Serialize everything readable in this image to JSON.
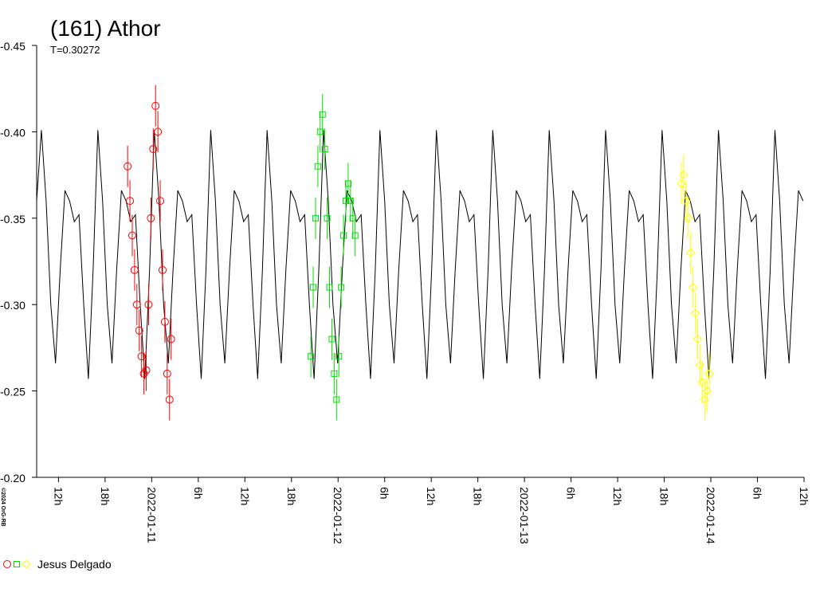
{
  "chart_data": {
    "type": "scatter",
    "title": "(161) Athor",
    "subtitle": "T=0.30272",
    "credit": "©2024 OrG-RB",
    "legend": {
      "label": "Jesus Delgado",
      "position": "bottom-left"
    },
    "y_inverted": true,
    "ylim": [
      -0.45,
      -0.2
    ],
    "yticks": [
      {
        "value": -0.45,
        "label": "-0.45"
      },
      {
        "value": -0.4,
        "label": "-0.40"
      },
      {
        "value": -0.35,
        "label": "-0.35"
      },
      {
        "value": -0.3,
        "label": "-0.30"
      },
      {
        "value": -0.25,
        "label": "-0.25"
      },
      {
        "value": -0.2,
        "label": "-0.20"
      }
    ],
    "xlim": [
      9.19,
      108
    ],
    "xticks": [
      {
        "value": 12,
        "label": "12h"
      },
      {
        "value": 18,
        "label": "18h"
      },
      {
        "value": 24,
        "label": "2022-01-11"
      },
      {
        "value": 30,
        "label": "6h"
      },
      {
        "value": 36,
        "label": "12h"
      },
      {
        "value": 42,
        "label": "18h"
      },
      {
        "value": 48,
        "label": "2022-01-12"
      },
      {
        "value": 54,
        "label": "6h"
      },
      {
        "value": 60,
        "label": "12h"
      },
      {
        "value": 66,
        "label": "18h"
      },
      {
        "value": 72,
        "label": "2022-01-13"
      },
      {
        "value": 78,
        "label": "6h"
      },
      {
        "value": 84,
        "label": "12h"
      },
      {
        "value": 90,
        "label": "18h"
      },
      {
        "value": 96,
        "label": "2022-01-14"
      },
      {
        "value": 102,
        "label": "6h"
      },
      {
        "value": 108,
        "label": "12h"
      }
    ],
    "series": [
      {
        "kind": "line",
        "color": "#000000",
        "x": [
          9.19,
          9.8,
          10.41,
          11.01,
          11.62,
          12.22,
          12.83,
          13.43,
          14.04,
          14.64,
          15.25,
          15.85,
          16.46,
          17.07,
          17.68,
          18.28,
          18.89,
          19.49,
          20.1,
          20.7,
          21.31,
          21.91,
          22.52,
          23.12,
          23.73,
          24.33,
          24.94,
          25.54,
          26.15,
          26.75,
          27.36,
          27.96,
          28.57,
          29.17,
          29.78,
          30.38,
          30.99,
          31.6,
          32.21,
          32.81,
          33.42,
          34.02,
          34.63,
          35.23,
          35.84,
          36.44,
          37.05,
          37.65,
          38.26,
          38.86,
          39.47,
          40.07,
          40.68,
          41.28,
          41.89,
          42.49,
          43.1,
          43.7,
          44.31,
          44.91,
          45.52,
          46.13,
          46.74,
          47.34,
          47.95,
          48.55,
          49.16,
          49.76,
          50.37,
          50.97,
          51.58,
          52.18,
          52.79,
          53.39,
          54.0,
          54.6,
          55.21,
          55.81,
          56.42,
          57.02,
          57.63,
          58.23,
          58.84,
          59.44,
          60.05,
          60.66,
          61.27,
          61.87,
          62.48,
          63.08,
          63.69,
          64.29,
          64.9,
          65.5,
          66.11,
          66.71,
          67.32,
          67.92,
          68.53,
          69.13,
          69.74,
          70.34,
          70.95,
          71.55,
          72.16,
          72.76,
          73.37,
          73.97,
          74.58,
          75.19,
          75.8,
          76.4,
          77.01,
          77.61,
          78.22,
          78.82,
          79.43,
          80.03,
          80.64,
          81.24,
          81.85,
          82.45,
          83.06,
          83.66,
          84.27,
          84.87,
          85.48,
          86.08,
          86.69,
          87.29,
          87.9,
          88.5,
          89.11,
          89.72,
          90.33,
          90.93,
          91.54,
          92.14,
          92.75,
          93.35,
          93.96,
          94.56,
          95.17,
          95.77,
          96.38,
          96.98,
          97.59,
          98.19,
          98.8,
          99.4,
          100.01,
          100.61,
          101.22,
          101.82,
          102.43,
          103.03,
          103.64,
          104.25,
          104.86,
          105.46,
          106.07,
          106.67,
          107.28,
          107.88
        ],
        "values": [
          -0.36,
          -0.401,
          -0.36,
          -0.3,
          -0.266,
          -0.32,
          -0.366,
          -0.36,
          -0.348,
          -0.352,
          -0.3,
          -0.257,
          -0.32,
          -0.401,
          -0.36,
          -0.3,
          -0.266,
          -0.32,
          -0.366,
          -0.36,
          -0.348,
          -0.352,
          -0.3,
          -0.257,
          -0.32,
          -0.401,
          -0.36,
          -0.3,
          -0.266,
          -0.32,
          -0.366,
          -0.36,
          -0.348,
          -0.352,
          -0.3,
          -0.257,
          -0.32,
          -0.401,
          -0.36,
          -0.3,
          -0.266,
          -0.32,
          -0.366,
          -0.36,
          -0.348,
          -0.352,
          -0.3,
          -0.257,
          -0.32,
          -0.401,
          -0.36,
          -0.3,
          -0.266,
          -0.32,
          -0.366,
          -0.36,
          -0.348,
          -0.352,
          -0.3,
          -0.257,
          -0.32,
          -0.401,
          -0.36,
          -0.3,
          -0.266,
          -0.32,
          -0.366,
          -0.36,
          -0.348,
          -0.352,
          -0.3,
          -0.257,
          -0.32,
          -0.401,
          -0.36,
          -0.3,
          -0.266,
          -0.32,
          -0.366,
          -0.36,
          -0.348,
          -0.352,
          -0.3,
          -0.257,
          -0.32,
          -0.401,
          -0.36,
          -0.3,
          -0.266,
          -0.32,
          -0.366,
          -0.36,
          -0.348,
          -0.352,
          -0.3,
          -0.257,
          -0.32,
          -0.401,
          -0.36,
          -0.3,
          -0.266,
          -0.32,
          -0.366,
          -0.36,
          -0.348,
          -0.352,
          -0.3,
          -0.257,
          -0.32,
          -0.401,
          -0.36,
          -0.3,
          -0.266,
          -0.32,
          -0.366,
          -0.36,
          -0.348,
          -0.352,
          -0.3,
          -0.257,
          -0.32,
          -0.401,
          -0.36,
          -0.3,
          -0.266,
          -0.32,
          -0.366,
          -0.36,
          -0.348,
          -0.352,
          -0.3,
          -0.257,
          -0.32,
          -0.401,
          -0.36,
          -0.3,
          -0.266,
          -0.32,
          -0.366,
          -0.36,
          -0.348,
          -0.352,
          -0.3,
          -0.257,
          -0.32,
          -0.401,
          -0.36,
          -0.3,
          -0.266,
          -0.32,
          -0.366,
          -0.36,
          -0.348,
          -0.352,
          -0.3,
          -0.257,
          -0.32,
          -0.401,
          -0.36,
          -0.3,
          -0.266,
          -0.32,
          -0.366,
          -0.36
        ]
      },
      {
        "kind": "points",
        "marker": "circle",
        "color": "#ff0000",
        "error": 0.012,
        "x": [
          20.9,
          21.2,
          21.5,
          21.8,
          22.1,
          22.4,
          22.7,
          23.0,
          23.3,
          23.6,
          23.9,
          24.2,
          24.5,
          24.8,
          25.1,
          25.4,
          25.7,
          26.0,
          26.3,
          26.5
        ],
        "values": [
          -0.38,
          -0.36,
          -0.34,
          -0.32,
          -0.3,
          -0.285,
          -0.27,
          -0.26,
          -0.262,
          -0.3,
          -0.35,
          -0.39,
          -0.415,
          -0.4,
          -0.36,
          -0.32,
          -0.29,
          -0.26,
          -0.245,
          -0.28
        ]
      },
      {
        "kind": "points",
        "marker": "square",
        "color": "#00e000",
        "error": 0.012,
        "x": [
          44.5,
          44.8,
          45.1,
          45.4,
          45.7,
          46.0,
          46.3,
          46.6,
          46.9,
          47.2,
          47.5,
          47.8,
          48.1,
          48.4,
          48.7,
          49.0,
          49.3,
          49.6,
          49.9,
          50.2
        ],
        "values": [
          -0.27,
          -0.31,
          -0.35,
          -0.38,
          -0.4,
          -0.41,
          -0.39,
          -0.35,
          -0.31,
          -0.28,
          -0.26,
          -0.245,
          -0.27,
          -0.31,
          -0.34,
          -0.36,
          -0.37,
          -0.36,
          -0.35,
          -0.34
        ]
      },
      {
        "kind": "points",
        "marker": "diamond",
        "color": "#ffff00",
        "error": 0.012,
        "x": [
          92.2,
          92.5,
          92.8,
          93.1,
          93.4,
          93.7,
          94.0,
          94.3,
          94.6,
          94.9,
          95.2,
          95.5,
          95.8
        ],
        "values": [
          -0.37,
          -0.375,
          -0.36,
          -0.35,
          -0.33,
          -0.31,
          -0.295,
          -0.28,
          -0.265,
          -0.255,
          -0.245,
          -0.25,
          -0.26
        ]
      }
    ]
  }
}
